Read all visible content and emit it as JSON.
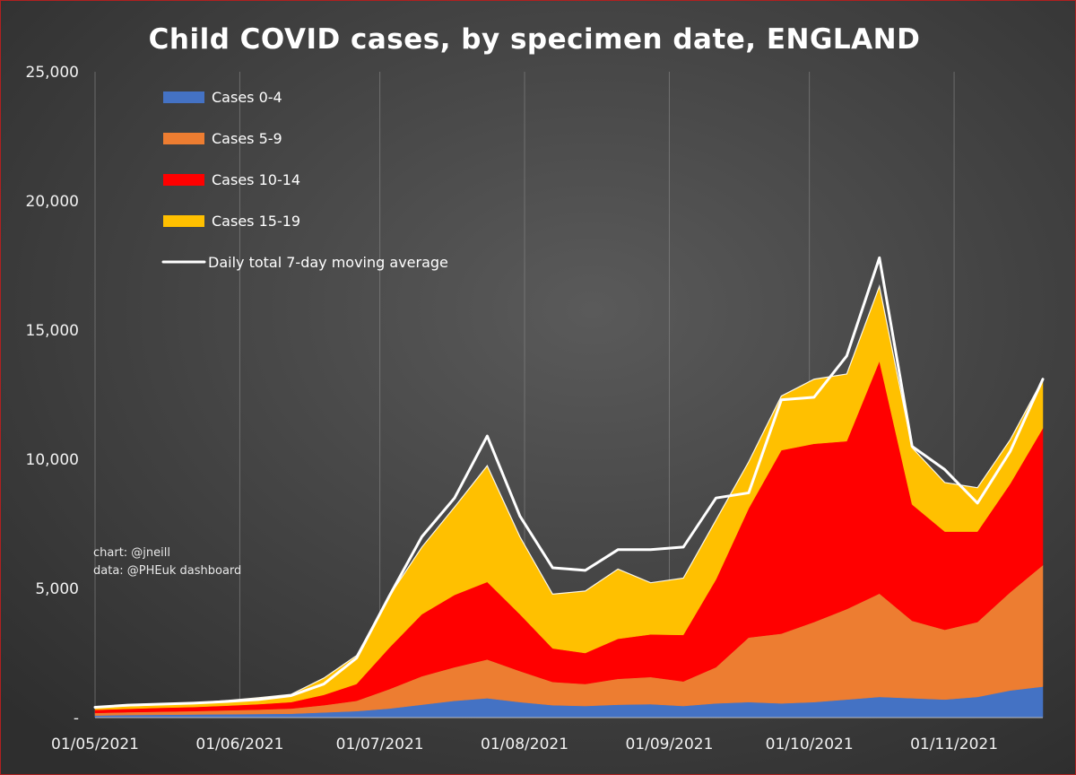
{
  "chart_data": {
    "type": "area",
    "title": "Child COVID cases, by specimen date, ENGLAND",
    "xlabel": "",
    "ylabel": "",
    "ylim": [
      0,
      25000
    ],
    "yticks": [
      0,
      5000,
      10000,
      15000,
      20000,
      25000
    ],
    "ytick_labels": [
      "-",
      "5,000",
      "10,000",
      "15,000",
      "20,000",
      "25,000"
    ],
    "xticks": [
      "2021-05-01",
      "2021-06-01",
      "2021-07-01",
      "2021-08-01",
      "2021-09-01",
      "2021-10-01",
      "2021-11-01"
    ],
    "xtick_labels": [
      "01/05/2021",
      "01/06/2021",
      "01/07/2021",
      "01/08/2021",
      "01/09/2021",
      "01/10/2021",
      "01/11/2021"
    ],
    "xlim": [
      "2021-05-01",
      "2021-11-20"
    ],
    "stacked": true,
    "grid": "vertical",
    "legend_position": "top-left",
    "colors": {
      "background_outer": "#2e2e2e",
      "background_inner": "#5a5a5a",
      "cases_0_4": "#4472c4",
      "cases_5_9": "#ed7d31",
      "cases_10_14": "#ff0000",
      "cases_15_19": "#ffc000",
      "moving_average": "#ffffff"
    },
    "x": [
      "2021-05-01",
      "2021-05-08",
      "2021-05-15",
      "2021-05-22",
      "2021-05-29",
      "2021-06-05",
      "2021-06-12",
      "2021-06-19",
      "2021-06-26",
      "2021-07-03",
      "2021-07-10",
      "2021-07-17",
      "2021-07-24",
      "2021-07-31",
      "2021-08-07",
      "2021-08-14",
      "2021-08-21",
      "2021-08-28",
      "2021-09-04",
      "2021-09-11",
      "2021-09-18",
      "2021-09-25",
      "2021-10-02",
      "2021-10-09",
      "2021-10-16",
      "2021-10-23",
      "2021-10-30",
      "2021-11-06",
      "2021-11-13",
      "2021-11-20"
    ],
    "series": [
      {
        "name": "Cases 0-4",
        "key": "cases_0_4",
        "kind": "area",
        "values": [
          80,
          100,
          110,
          120,
          130,
          140,
          150,
          200,
          250,
          350,
          500,
          650,
          750,
          600,
          480,
          450,
          500,
          520,
          450,
          550,
          600,
          550,
          600,
          700,
          800,
          750,
          700,
          800,
          1050,
          1200
        ]
      },
      {
        "name": "Cases 5-9",
        "key": "cases_5_9",
        "kind": "area",
        "values": [
          100,
          110,
          120,
          130,
          150,
          170,
          200,
          280,
          400,
          750,
          1100,
          1300,
          1500,
          1200,
          900,
          850,
          1000,
          1050,
          950,
          1400,
          2500,
          2700,
          3100,
          3500,
          4000,
          3000,
          2700,
          2900,
          3800,
          4700
        ]
      },
      {
        "name": "Cases 10-14",
        "key": "cases_10_14",
        "kind": "area",
        "values": [
          120,
          130,
          150,
          160,
          180,
          210,
          250,
          400,
          650,
          1600,
          2400,
          2800,
          3000,
          2200,
          1300,
          1200,
          1550,
          1650,
          1800,
          3400,
          5000,
          7100,
          6900,
          6500,
          9000,
          4500,
          3800,
          3500,
          4200,
          5300
        ]
      },
      {
        "name": "Cases 15-19",
        "key": "cases_15_19",
        "kind": "area",
        "values": [
          100,
          110,
          120,
          150,
          200,
          250,
          300,
          650,
          1100,
          2000,
          2600,
          3400,
          4500,
          3000,
          2100,
          2400,
          2700,
          2000,
          2200,
          2300,
          1800,
          2100,
          2500,
          2600,
          2900,
          2200,
          1900,
          1700,
          1700,
          1900
        ]
      },
      {
        "name": "Daily total 7-day moving average",
        "key": "moving_average",
        "kind": "line",
        "values": [
          400,
          480,
          520,
          560,
          620,
          700,
          850,
          1300,
          2300,
          4700,
          7000,
          8500,
          10900,
          7800,
          5800,
          5700,
          6500,
          6500,
          6600,
          8500,
          8700,
          12300,
          12400,
          14000,
          17800,
          10500,
          9600,
          8300,
          10300,
          13100
        ]
      }
    ],
    "annotations": [
      "chart: @jneill",
      "data: @PHEuk dashboard"
    ]
  }
}
